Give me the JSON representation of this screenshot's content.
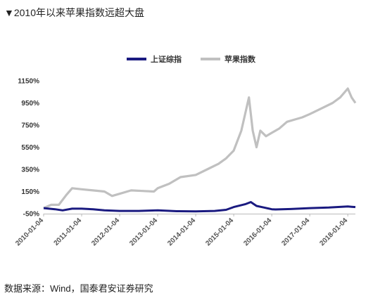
{
  "caption": "▼2010年以来苹果指数远超大盘",
  "source": "数据来源：Wind，国泰君安证券研究",
  "chart_data": {
    "type": "line",
    "ylim": [
      -50,
      1150
    ],
    "y_ticks": [
      "1150%",
      "950%",
      "750%",
      "550%",
      "350%",
      "150%",
      "-50%"
    ],
    "y_tick_values": [
      1150,
      950,
      750,
      550,
      350,
      150,
      -50
    ],
    "x_ticks": [
      "2010-01-04",
      "2011-01-04",
      "2012-01-04",
      "2013-01-04",
      "2014-01-04",
      "2015-01-04",
      "2016-01-04",
      "2017-01-04",
      "2018-01-04"
    ],
    "legend_position": "top-center",
    "grid": false,
    "series": [
      {
        "name": "上证综指",
        "color": "#1a1a80",
        "x": [
          2010.0,
          2010.3,
          2010.5,
          2010.75,
          2011.0,
          2011.3,
          2011.6,
          2012.0,
          2012.5,
          2013.0,
          2013.5,
          2014.0,
          2014.5,
          2014.8,
          2015.0,
          2015.3,
          2015.45,
          2015.6,
          2015.8,
          2016.0,
          2016.1,
          2016.5,
          2017.0,
          2017.5,
          2018.0,
          2018.1,
          2018.2
        ],
        "values": [
          0,
          -10,
          -20,
          -5,
          -5,
          -10,
          -20,
          -25,
          -25,
          -20,
          -28,
          -30,
          -25,
          -15,
          10,
          35,
          55,
          20,
          5,
          -10,
          -12,
          -8,
          0,
          5,
          15,
          12,
          10
        ]
      },
      {
        "name": "苹果指数",
        "color": "#c0c0c0",
        "x": [
          2010.0,
          2010.2,
          2010.4,
          2010.6,
          2010.75,
          2011.0,
          2011.3,
          2011.6,
          2011.8,
          2012.0,
          2012.3,
          2012.6,
          2012.9,
          2013.0,
          2013.3,
          2013.6,
          2014.0,
          2014.3,
          2014.6,
          2014.8,
          2015.0,
          2015.2,
          2015.3,
          2015.4,
          2015.5,
          2015.6,
          2015.7,
          2015.85,
          2016.0,
          2016.2,
          2016.4,
          2016.6,
          2016.8,
          2017.0,
          2017.3,
          2017.6,
          2017.8,
          2018.0,
          2018.1,
          2018.2
        ],
        "values": [
          0,
          30,
          30,
          120,
          180,
          170,
          160,
          150,
          110,
          130,
          160,
          155,
          150,
          180,
          220,
          280,
          300,
          350,
          400,
          450,
          520,
          700,
          850,
          1000,
          700,
          550,
          700,
          650,
          680,
          720,
          780,
          800,
          820,
          850,
          900,
          950,
          1000,
          1080,
          1000,
          950
        ]
      }
    ]
  }
}
